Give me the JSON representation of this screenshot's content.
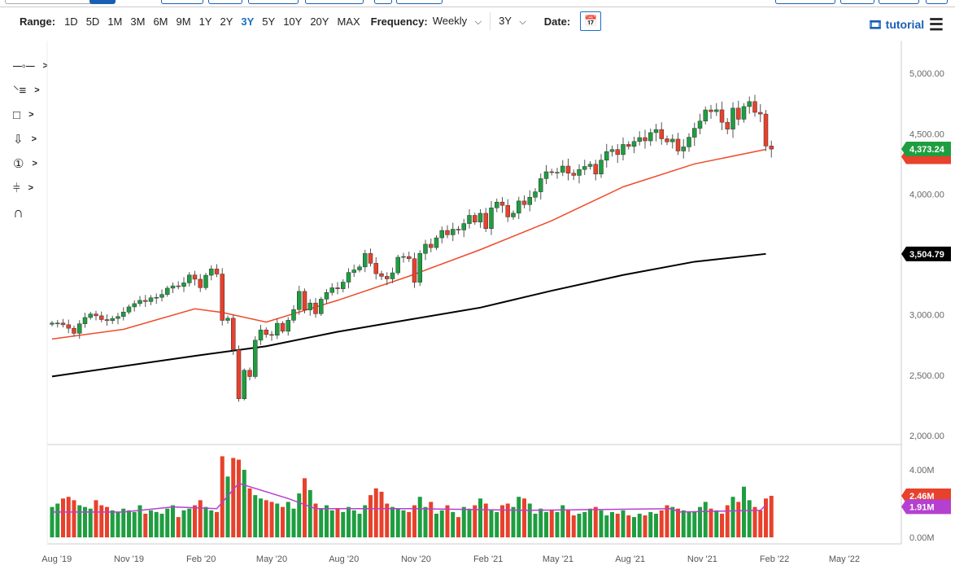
{
  "toolbar": {
    "range_label": "Range:",
    "ranges": [
      "1D",
      "5D",
      "1M",
      "3M",
      "6M",
      "9M",
      "1Y",
      "2Y",
      "3Y",
      "5Y",
      "10Y",
      "20Y",
      "MAX"
    ],
    "active_range": "3Y",
    "frequency_label": "Frequency:",
    "frequency_value": "Weekly",
    "period_value": "3Y",
    "date_label": "Date:",
    "tutorial": "tutorial"
  },
  "left_tools": [
    "line-tool-icon",
    "fibonacci-tool-icon",
    "rectangle-tool-icon",
    "arrow-down-tool-icon",
    "number-marker-icon",
    "measure-tool-icon",
    "magnet-icon"
  ],
  "colors": {
    "up": "#1e9e40",
    "down": "#e8412c",
    "ma_fast": "#f04a2a",
    "ma_slow": "#000000",
    "vol_ma": "#b540d0"
  },
  "chart_data": {
    "type": "candlestick",
    "frequency": "weekly",
    "week_start": "2019-07-26",
    "closes": [
      2932,
      2932,
      2918,
      2889,
      2847,
      2926,
      2978,
      3007,
      2992,
      2961,
      2952,
      2970,
      2986,
      3023,
      3066,
      3093,
      3120,
      3110,
      3141,
      3145,
      3169,
      3221,
      3240,
      3235,
      3265,
      3330,
      3295,
      3225,
      3328,
      3380,
      3338,
      2954,
      2972,
      2711,
      2305,
      2541,
      2489,
      2790,
      2875,
      2837,
      2831,
      2930,
      2864,
      2955,
      3044,
      3194,
      3041,
      3098,
      3009,
      3130,
      3185,
      3224,
      3216,
      3271,
      3351,
      3372,
      3397,
      3508,
      3427,
      3341,
      3319,
      3298,
      3348,
      3477,
      3483,
      3465,
      3270,
      3509,
      3585,
      3557,
      3638,
      3699,
      3663,
      3709,
      3703,
      3756,
      3824,
      3768,
      3841,
      3714,
      3886,
      3934,
      3907,
      3811,
      3842,
      3943,
      3913,
      3974,
      4019,
      4128,
      4185,
      4180,
      4181,
      4232,
      4173,
      4155,
      4204,
      4229,
      4247,
      4166,
      4281,
      4352,
      4369,
      4327,
      4411,
      4395,
      4436,
      4468,
      4441,
      4509,
      4535,
      4458,
      4433,
      4455,
      4357,
      4391,
      4471,
      4545,
      4605,
      4697,
      4683,
      4698,
      4595,
      4538,
      4712,
      4620,
      4725,
      4766,
      4677,
      4663,
      4398,
      4373
    ],
    "volumes_m": [
      1.8,
      2.0,
      2.3,
      2.4,
      2.2,
      1.9,
      1.8,
      1.7,
      2.2,
      1.9,
      1.8,
      1.6,
      1.5,
      1.7,
      1.6,
      1.5,
      1.9,
      1.4,
      1.6,
      1.5,
      1.4,
      1.7,
      1.9,
      1.2,
      1.6,
      1.7,
      1.9,
      2.2,
      1.8,
      1.6,
      1.5,
      4.8,
      3.6,
      4.7,
      4.6,
      4.0,
      2.9,
      2.5,
      2.3,
      2.2,
      2.1,
      2.0,
      1.8,
      2.1,
      1.7,
      2.6,
      3.5,
      2.8,
      2.0,
      1.7,
      1.9,
      1.6,
      1.7,
      1.5,
      1.8,
      1.6,
      1.4,
      1.9,
      2.5,
      2.9,
      2.7,
      2.0,
      1.8,
      1.7,
      1.6,
      1.5,
      1.9,
      2.4,
      1.8,
      2.1,
      1.4,
      1.6,
      1.9,
      1.5,
      1.2,
      1.8,
      1.7,
      1.9,
      2.3,
      2.0,
      1.6,
      1.5,
      1.9,
      2.0,
      1.8,
      2.4,
      2.3,
      2.0,
      1.4,
      1.7,
      1.5,
      1.6,
      1.5,
      1.9,
      1.6,
      1.3,
      1.4,
      1.5,
      1.7,
      1.8,
      1.6,
      1.3,
      1.5,
      1.4,
      1.6,
      1.3,
      1.2,
      1.4,
      1.3,
      1.5,
      1.4,
      1.6,
      1.9,
      1.8,
      1.7,
      1.6,
      1.5,
      1.5,
      1.8,
      2.1,
      1.7,
      1.6,
      1.4,
      1.9,
      2.4,
      2.1,
      3.0,
      2.2,
      1.8,
      1.6,
      2.3,
      2.46
    ],
    "ma_fast": [
      [
        "2019-07-26",
        2800
      ],
      [
        "2019-10-25",
        2880
      ],
      [
        "2020-01-24",
        3050
      ],
      [
        "2020-02-28",
        3020
      ],
      [
        "2020-04-24",
        2940
      ],
      [
        "2020-07-24",
        3120
      ],
      [
        "2020-10-23",
        3320
      ],
      [
        "2021-01-22",
        3540
      ],
      [
        "2021-04-23",
        3780
      ],
      [
        "2021-07-23",
        4060
      ],
      [
        "2021-10-22",
        4250
      ],
      [
        "2022-01-21",
        4370
      ]
    ],
    "ma_slow": [
      [
        "2019-07-26",
        2490
      ],
      [
        "2020-01-24",
        2660
      ],
      [
        "2020-04-24",
        2740
      ],
      [
        "2020-07-24",
        2860
      ],
      [
        "2020-10-23",
        2960
      ],
      [
        "2021-01-22",
        3060
      ],
      [
        "2021-04-23",
        3200
      ],
      [
        "2021-07-23",
        3330
      ],
      [
        "2021-10-22",
        3440
      ],
      [
        "2022-01-21",
        3505
      ]
    ],
    "vol_ma": [
      [
        "2019-07-26",
        1.5
      ],
      [
        "2019-10-25",
        1.5
      ],
      [
        "2019-12-27",
        1.8
      ],
      [
        "2020-02-21",
        1.7
      ],
      [
        "2020-03-20",
        3.2
      ],
      [
        "2020-05-22",
        2.3
      ],
      [
        "2020-06-26",
        1.7
      ],
      [
        "2020-10-23",
        1.7
      ],
      [
        "2021-03-26",
        1.6
      ],
      [
        "2021-09-24",
        1.7
      ],
      [
        "2021-10-01",
        1.5
      ],
      [
        "2022-01-14",
        1.6
      ],
      [
        "2022-01-21",
        1.91
      ]
    ],
    "y_ticks": [
      "5,000.00",
      "4,500.00",
      "4,000.00",
      "3,000.00",
      "2,500.00",
      "2,000.00"
    ],
    "y_tick_values": [
      5000,
      4500,
      4000,
      3000,
      2500,
      2000
    ],
    "vol_ticks": [
      "4.00M",
      "0.00M"
    ],
    "x_ticks": [
      "Aug '19",
      "Nov '19",
      "Feb '20",
      "May '20",
      "Aug '20",
      "Nov '20",
      "Feb '21",
      "May '21",
      "Aug '21",
      "Nov '21",
      "Feb '22",
      "May '22"
    ],
    "x_tick_dates": [
      "2019-08-01",
      "2019-11-01",
      "2020-02-01",
      "2020-05-01",
      "2020-08-01",
      "2020-11-01",
      "2021-02-01",
      "2021-05-01",
      "2021-08-01",
      "2021-11-01",
      "2022-02-01",
      "2022-05-01"
    ],
    "last_price": "4,373.24",
    "ma_slow_label": "3,504.79",
    "last_volume": "2.46M",
    "vol_ma_label": "1.91M",
    "ylim": [
      2000,
      5000
    ]
  }
}
